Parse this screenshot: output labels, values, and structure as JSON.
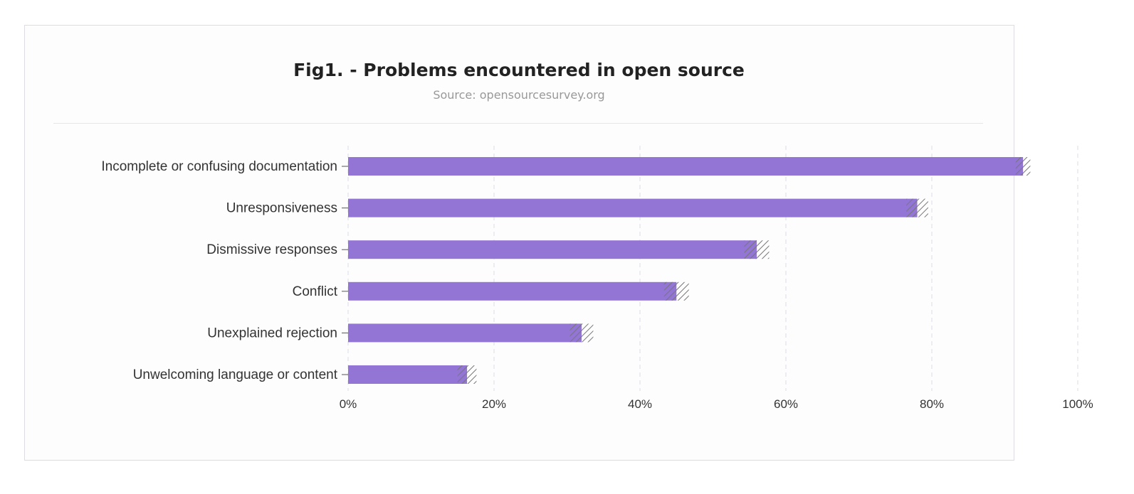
{
  "chart_data": {
    "type": "bar",
    "orientation": "horizontal",
    "title": "Fig1. - Problems encountered in open source",
    "subtitle": "Source: opensourcesurvey.org",
    "categories": [
      "Incomplete or confusing documentation",
      "Unresponsiveness",
      "Dismissive responses",
      "Conflict",
      "Unexplained rejection",
      "Unwelcoming language or content"
    ],
    "values": [
      92.5,
      78,
      56,
      45,
      32,
      16.3
    ],
    "error_margin": [
      1.0,
      1.5,
      1.7,
      1.7,
      1.6,
      1.3
    ],
    "xlim": [
      0,
      100
    ],
    "xticks": [
      "0%",
      "20%",
      "40%",
      "60%",
      "80%",
      "100%"
    ],
    "grid": "vertical dashed",
    "colors": {
      "bar": "#9275d4",
      "hatch": "#777777"
    }
  }
}
